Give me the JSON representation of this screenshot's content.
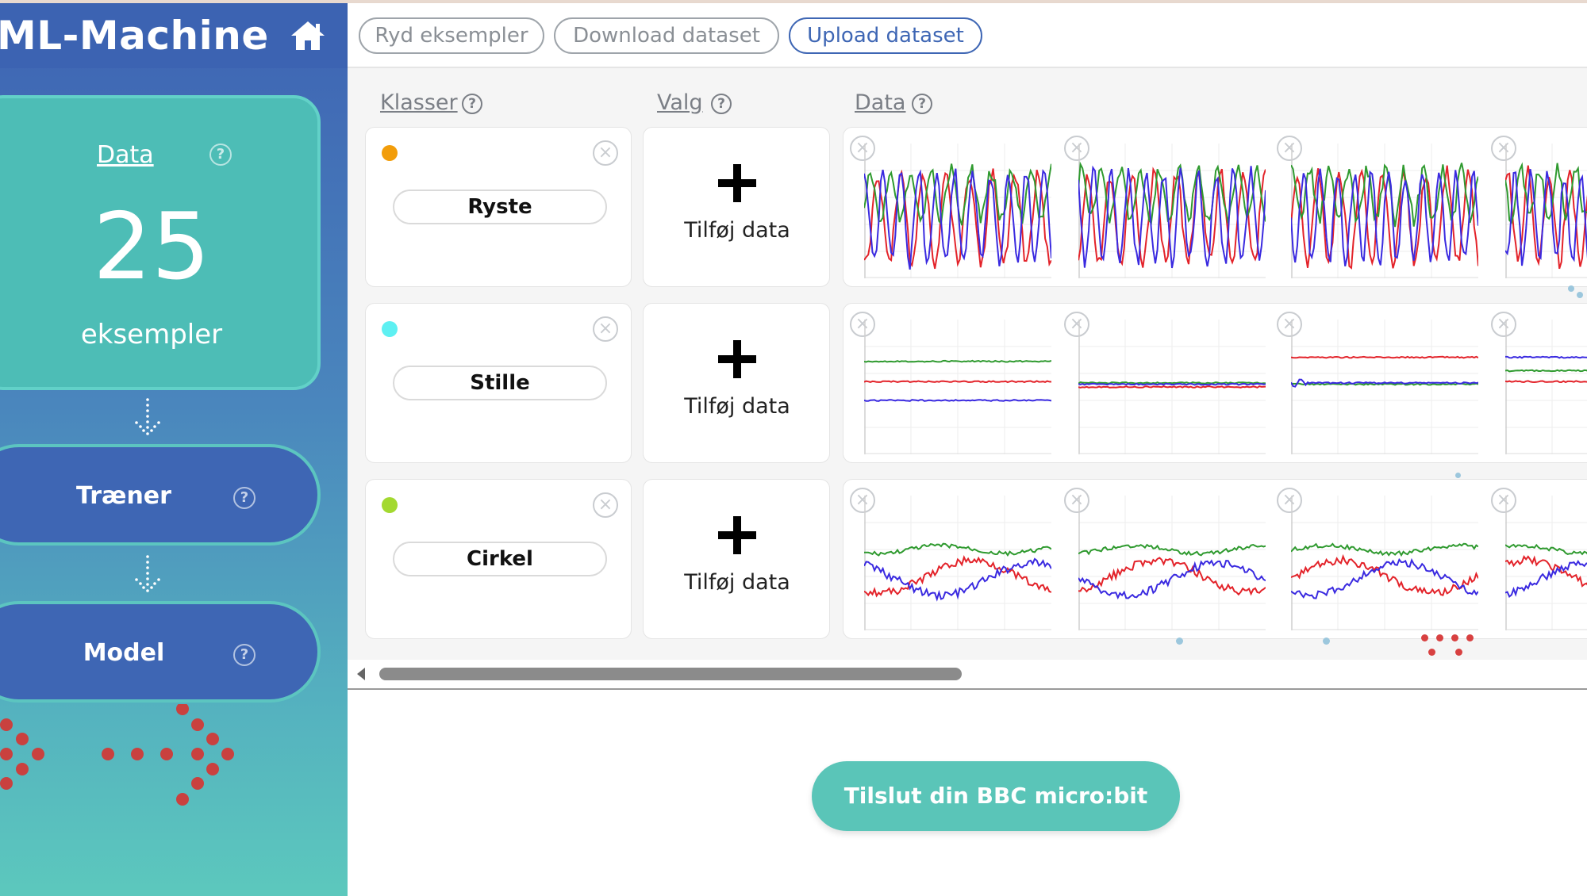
{
  "app": {
    "title": "ML-Machine",
    "home_icon": "home-icon"
  },
  "toolbar": {
    "clear_label": "Ryd eksempler",
    "download_label": "Download dataset",
    "upload_label": "Upload dataset"
  },
  "sidebar": {
    "data_card": {
      "link": "Data",
      "count": "25",
      "unit": "eksempler"
    },
    "steps": [
      {
        "label": "Træner"
      },
      {
        "label": "Model"
      }
    ]
  },
  "columns": {
    "classes": "Klasser",
    "options": "Valg",
    "data": "Data"
  },
  "gestures": [
    {
      "name": "Ryste",
      "color": "#f29d0a",
      "add_label": "Tilføj data"
    },
    {
      "name": "Stille",
      "color": "#5ef0f2",
      "add_label": "Tilføj data"
    },
    {
      "name": "Cirkel",
      "color": "#a3d930",
      "add_label": "Tilføj data"
    }
  ],
  "series_colors": {
    "x": "#e3232a",
    "y": "#2f9a2f",
    "z": "#3a2ae0"
  },
  "connect_button": "Tilslut din BBC micro:bit"
}
